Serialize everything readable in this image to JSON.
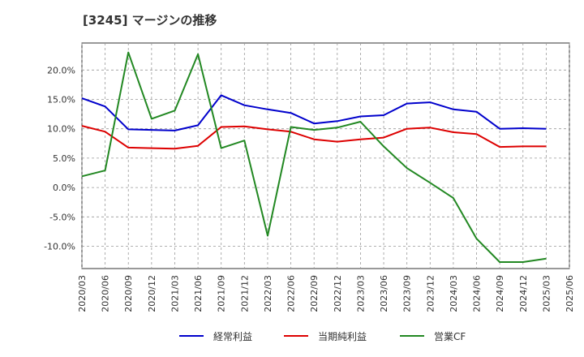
{
  "title": "[3245]  マージンの推移",
  "chart_data": {
    "type": "line",
    "title": "[3245]  マージンの推移",
    "x": [
      "2020/03",
      "2020/06",
      "2020/09",
      "2020/12",
      "2021/03",
      "2021/06",
      "2021/09",
      "2021/12",
      "2022/03",
      "2022/06",
      "2022/09",
      "2022/12",
      "2023/03",
      "2023/06",
      "2023/09",
      "2023/12",
      "2024/03",
      "2024/06",
      "2024/09",
      "2024/12",
      "2025/03",
      "2025/06"
    ],
    "ylim": [
      -13.8,
      24.6
    ],
    "yticks": [
      20,
      15,
      10,
      5,
      0,
      -5,
      -10
    ],
    "ytick_labels": [
      "20.0%",
      "15.0%",
      "10.0%",
      "5.0%",
      "0.0%",
      "-5.0%",
      "-10.0%"
    ],
    "grid": true,
    "legend_position": "bottom",
    "series": [
      {
        "name": "経常利益",
        "color": "#0000cc",
        "values": [
          15.2,
          13.8,
          9.9,
          9.8,
          9.7,
          10.6,
          15.7,
          14.0,
          13.3,
          12.7,
          10.9,
          11.3,
          12.1,
          12.3,
          14.3,
          14.5,
          13.3,
          12.9,
          10.0,
          10.1,
          10.0,
          null
        ]
      },
      {
        "name": "当期純利益",
        "color": "#dd0000",
        "values": [
          10.5,
          9.5,
          6.8,
          6.7,
          6.6,
          7.1,
          10.3,
          10.4,
          9.9,
          9.5,
          8.2,
          7.8,
          8.2,
          8.5,
          10.0,
          10.2,
          9.4,
          9.1,
          6.9,
          7.0,
          7.0,
          null
        ]
      },
      {
        "name": "営業CF",
        "color": "#228822",
        "values": [
          1.9,
          2.9,
          23.0,
          11.7,
          13.1,
          22.7,
          6.7,
          8.0,
          -8.2,
          10.3,
          9.8,
          10.2,
          11.2,
          7.0,
          3.3,
          0.8,
          -1.8,
          -8.7,
          -12.7,
          -12.7,
          -12.1,
          null
        ]
      }
    ]
  }
}
